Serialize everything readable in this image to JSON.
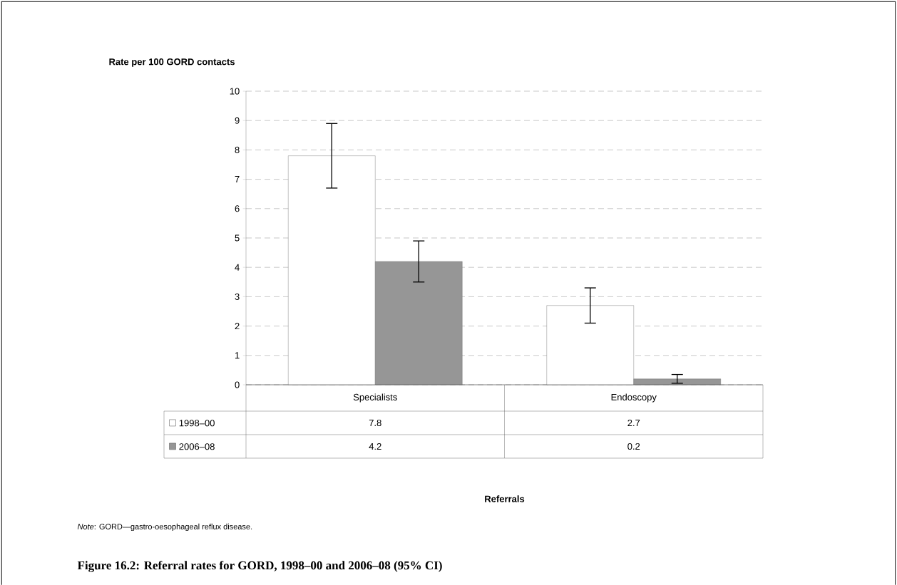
{
  "chart_data": {
    "type": "bar",
    "title": "Figure 16.2: Referral rates for GORD, 1998–00 and 2006–08 (95% CI)",
    "ylabel": "Rate per 100 GORD contacts",
    "annotations": [
      "Referrals",
      "*Note*: GORD—gastro-oesophageal reflux disease."
    ],
    "categories": [
      "Specialists",
      "Endoscopy"
    ],
    "series": [
      {
        "name": "1998–00",
        "color": "#ffffff",
        "values": [
          7.8,
          2.7
        ],
        "errors": [
          [
            6.7,
            8.9
          ],
          [
            2.1,
            3.3
          ]
        ]
      },
      {
        "name": "2006–08",
        "color": "#969696",
        "values": [
          4.2,
          0.2
        ],
        "errors": [
          [
            3.5,
            4.9
          ],
          [
            0.05,
            0.35
          ]
        ]
      }
    ],
    "ylim": [
      0,
      10
    ],
    "yticks": [
      0,
      1,
      2,
      3,
      4,
      5,
      6,
      7,
      8,
      9,
      10
    ],
    "grid": "y",
    "legend": "bottom",
    "data_labels": true
  }
}
